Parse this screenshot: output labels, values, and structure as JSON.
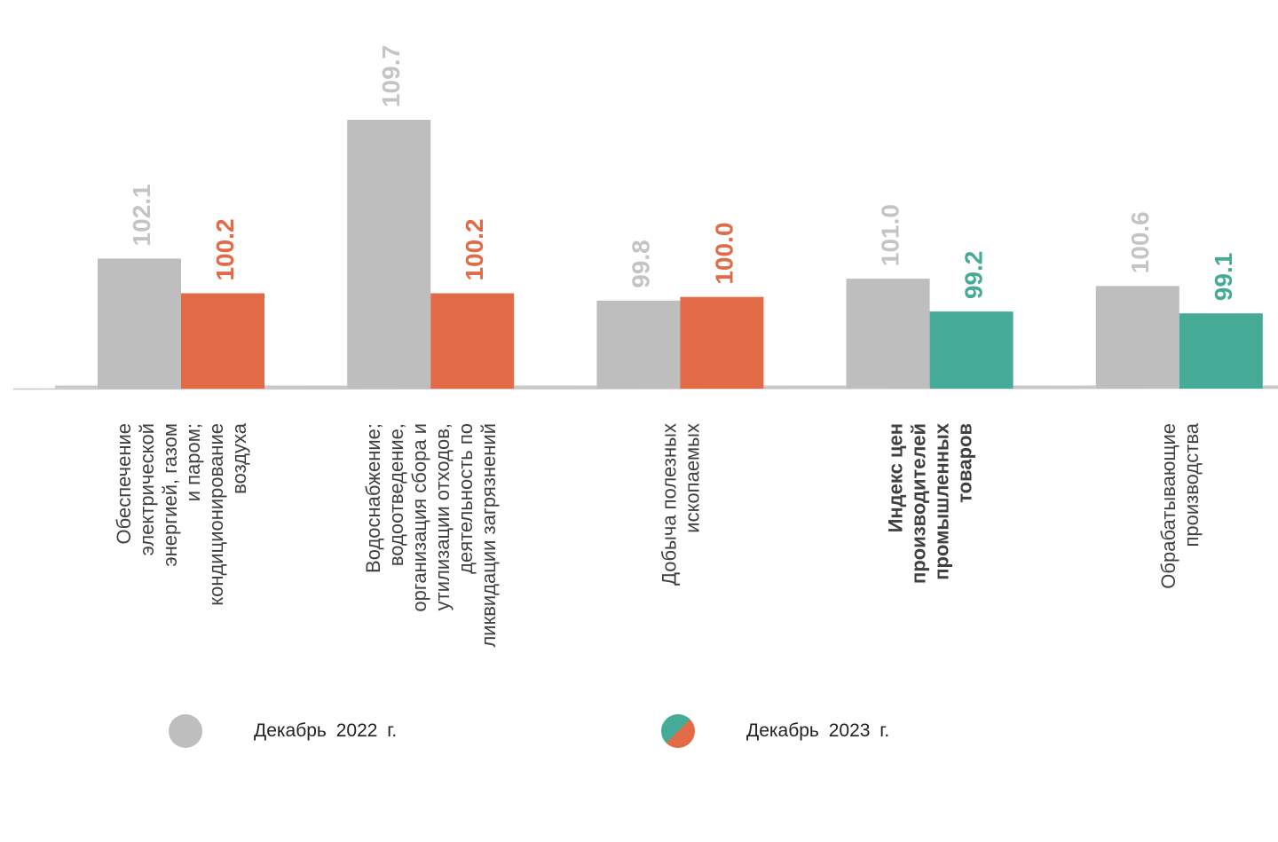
{
  "chart_data": {
    "type": "bar",
    "title": "",
    "xlabel": "",
    "ylabel": "",
    "categories": [
      {
        "lines": [
          "Обеспечение",
          "электрической",
          "энергией, газом",
          "и паром;",
          "кондиционирование",
          "воздуха"
        ],
        "bold": false
      },
      {
        "lines": [
          "Водоснабжение;",
          "водоотведение,",
          "организация сбора и",
          "утилизации отходов,",
          "деятельность по",
          "ликвидации загрязнений"
        ],
        "bold": false
      },
      {
        "lines": [
          "Добыча полезных",
          "ископаемых"
        ],
        "bold": false
      },
      {
        "lines": [
          "Индекс цен",
          "производителей",
          "промышленных",
          "товаров"
        ],
        "bold": true
      },
      {
        "lines": [
          "Обрабатывающие",
          "производства"
        ],
        "bold": false
      }
    ],
    "series": [
      {
        "name": "Декабрь  2022 г.",
        "values": [
          102.1,
          109.7,
          99.8,
          101.0,
          100.6
        ],
        "labels": [
          "102.1",
          "109.7",
          "99.8",
          "101.0",
          "100.6"
        ]
      },
      {
        "name": "Декабрь  2023 г.",
        "values": [
          100.2,
          100.2,
          100.0,
          99.2,
          99.1
        ],
        "labels": [
          "100.2",
          "100.2",
          "100.0",
          "99.2",
          "99.1"
        ]
      }
    ],
    "ylim": [
      94.98,
      111.45
    ],
    "legend_position": "bottom",
    "grid": false
  },
  "colors": {
    "dec_2022": "#bebebe",
    "dec_2023_up": "#e26a47",
    "dec_2023_down": "#45aa96",
    "label_2022": "#c4c4c4",
    "axis": "#c8c8c8",
    "text": "#404040"
  },
  "legend": {
    "item_2022": "Декабрь  2022 г.",
    "item_2023": "Декабрь  2023 г."
  }
}
